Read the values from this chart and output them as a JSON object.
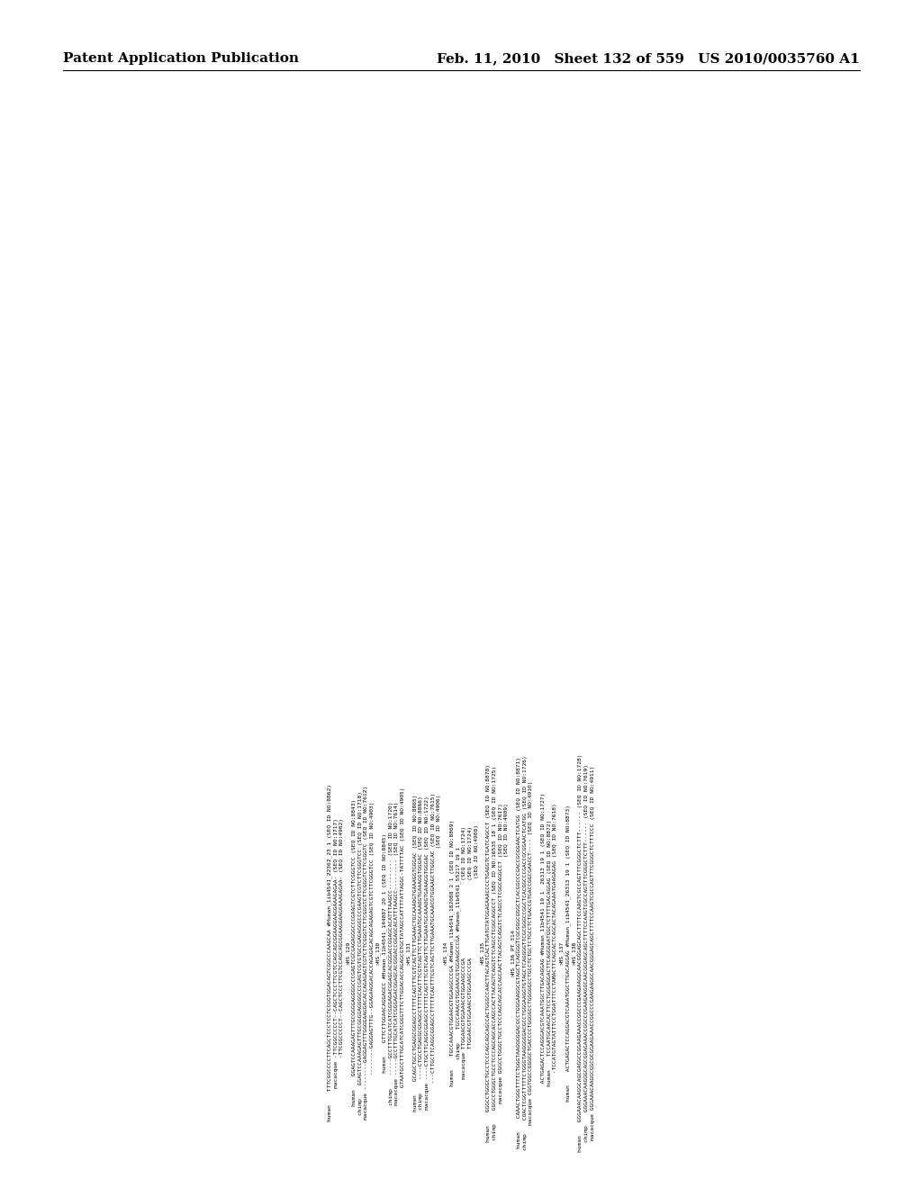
{
  "header_left": "Patent Application Publication",
  "header_right": "Feb. 11, 2010 Sheet 132 of 559 US 2010/0035760 A1",
  "background_color": "#ffffff",
  "text_color": "#000000",
  "header_font_size": 11,
  "body_font_size": 4.5,
  "lines": [
    "human    TTTCGGCCCCTTCAGCTCCCTCCTCCGGTGGACAGTCGGCCCAAGCAA #Human_1ib4541_22362_23 1 (SEQ ID NO:8862)",
    "macacque -TTCGGCCCCCT--CAGCTCCCTTCGTCCAGCAGCGGAAGGAAGGAAAGAGAA- (SEQ ID NO:1717)",
    "         -TTCGGCCCCCT--CAGCTCCCTTCGTCCAGCAGCGGAAGGAAGGAAAGAGAA- (SEQ ID NO:4902)",
    ">HS_129",
    "human    GGAGTCCAAAGAGTTTGCGGGGAGGGGCCCGAGTCGCGAGAGGGCCCGAAGTCGTCTTCGGGTCC (SEQ ID NO:8843)",
    "chimp    GGAGTCCAAAGAGTTTGCGGGGAGGGGCCCGAGTCGTGTGCCGAGAGGGCCCGAAGTCGTCTTCGGGTCC (SEQ ID NO:1718)",
    "macacque --------GAGGAGTTTGGGGAAGGACACCAGAGAGTCGTCTTCGGGTCTTCGGGTCTTCGGGTCTTCGGGTC (SEQ ID NO:7612)",
    "         --------GAGGAGTTTG--GGAGAAGGACACCAGAGACACAGCAGAGAGTCGTCTTCGGGTCC (SEQ ID NO:4903)",
    ">HS_130",
    "human    GTTCTTGGAACAGGAGCC #Human_11b4541_144087 20 1 (SEQ ID NO:8845)",
    "chimp    -----GCCTTTGCATCATCGGGAGACGGAGCACGGGACCGGAGCACATTTAAGCC--------- (SEQ ID NO:1720)",
    "macacque -----GCCTTTGCATCATCGGGAGACGGAGCACGGGACCGGAGCACATTTAAGCC--------- (SEQ ID NO:7614)",
    "         G7AATGCCTTTGCATCATCGGGTTTCTTGGACACCAGAGCGTGCTATAGCCATTTTATTAGGC-TATTTTAC (SEQ ID NO:4905)",
    ">HS_131",
    "human    GCAGCTGCCTGAGGCGGAGCCTTTTCAGTTTCGTCAGTTCTTGAAACTGCAAAOGTGAAAGGTGGGAC (SEQ ID NO:8865)",
    "chimp    ----CTGCCTGAGGCGGAGCCTTTTCAGTTTCGTCAGTTCTTGAAATGCAAAOGTGAAAGGTGGGAC (SEQ ID NO:8866)",
    "macacque ----CTGCTTCAGGCGGAGCCTTTTCAGTTTCGTCAGTTCTTGAAATGCAAAOGTGAAAGGTGGGAC (SEQ ID NO:1722)",
    "         ---CTTGCTTCAGGCGGAGCCTTTTTCAGTTTCGTCAGTTCTTGAAATGCAAACGTGGAAGCTTGGCAC (SEQ ID NO:7615)",
    "                                                                              (SEQ ID NO:4906)",
    ">HS_134",
    "human    TGCCAAACGTGGAACGTGGAAGCCCGA #Human_11b4541_182088 2 1 (SEQ ID NO:8869)",
    "chimp    TGCCAAACGTGGAAACGTGGAAGCCCGA #Human_11b4541_55217 19 1",
    "macacque TTGGAACGTGGAAACGTGGAAGCCCGA                       (SEQ ID NO:1724)",
    "         TTGGAACGTGGAAACGTGGAAGCCCGA                       (SEQ ID NO:1724)",
    "                                                            (SEQ ID NO:4908)",
    ">HS_135",
    "human    GGGCCTGGGCTGCCTCCCAGCAGCAGCCACTGGGCCAACTTACAGTCACTTGATGTATGGAGAAACCCCTGAGGTCTGATCAGCCT (SEQ ID NO:8870)",
    "chimp    GGGCCTGGGCTGCCTCCCAGCAGCACCAGCCACTTACAGTCAGGTCTCAGCCTCGGCAGGCCT (SEQ ID NO:16535 18 1 (SEQ ID NO:1725)",
    "macacque GGGCCTGGGCTGCCTCCCAGCAGCACCAGCAACTTACAGTCAGGTCTCAGCCTCGGCAGGCCT (SEQ ID NO:7617)",
    "                                                                         (SEQ ID NO:4909)",
    ">HS_136_PT_314",
    "human    CAAACTGGGTTTTCTGGGTAAGGGGGACGCCTGGGAAGGCGTAGCTCAGGGGTCGCGGGCGGGCTCACGGCCCGACCGCGGAACTCATGG (SEQ ID NO:8871)",
    "chimp    COACTCGGTTTTTCTGGGTAAGGGGGACGCCTGGGAAGGTGTAGCTCAGGGGTTCGCGGGCCGGCTCACGGCCCGACCGCGGAACTCATGG (SEQ ID NO:1726)",
    "macacque CGGTGGCCGGGGCTGACCCCTGGGGCCTGGGGGCCTGCCTCTGCTCTGCCTCTGACCGTGACCGGCGAACCT---- (SEQ ID NO:4910)",
    "",
    "         ACTGAGACTCCAGGGACGTCAAATGGCTTGACAGGAG #Human_11b4541 19 1  26313 19 1 (SEQ ID NO:1727)",
    "human    TCCAATGCAACACTTCCTGGGAGGACTTCAGGGAATGGCTCTTTTGACAGGAG (SEQ ID NO:8872)",
    "         -TCCATGTAGTATTTCCTGGATTTCCTAMACTTCAGCACTCAGCACTACAGAAATGAAGAGAG (SEQ ID NO:7618)",
    ">HS_137",
    "human    ACTGAGACTCCAGGACGTCAAATGGCTTGACAGGAG #Human_1ib4541_26313 19 1 (SEQ ID NO:8873)",
    ">HS_138",
    "human    GGGAAACAAGGCAGCGAGGCCGGAAGAAACCGGCCCGAAGAAGGCAACGGGAGCAGCTTTTCCAAGTCGCCAGTTTCGGGCTCTTT------ (SEQ ID NO:1728)",
    "chimp    GGGAAACAAGGGCAGCGGAGAAACCGGCCCGAAGAAGGCAACGGGAGCAGCTTTTCCAAGTCGCCAGTTTCGGGCTCTTT------ (SEQ ID NO:7619)",
    "macacque GGGAAACAAGGCGGCGCGGAAGAAACCGGCCCGAAGAAGGCAACGGGAGCAGCTTTTCCAAGTCGCCAGTTTCGGGCTCTTTCCC (SEQ ID NO:4911)"
  ]
}
